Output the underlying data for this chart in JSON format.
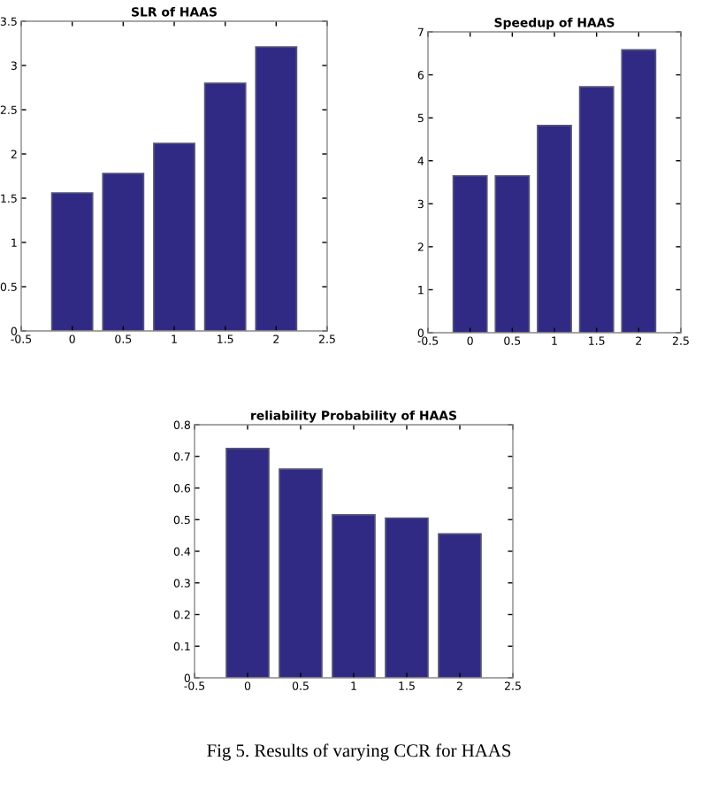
{
  "chart_data": [
    {
      "type": "bar",
      "title": "SLR of HAAS",
      "x": [
        0,
        0.5,
        1,
        1.5,
        2
      ],
      "color": "#312a84",
      "values": [
        1.56,
        1.78,
        2.12,
        2.8,
        3.21
      ],
      "xlim": [
        -0.5,
        2.5
      ],
      "xticks": [
        -0.5,
        0,
        0.5,
        1,
        1.5,
        2,
        2.5
      ],
      "ylim": [
        0,
        3.5
      ],
      "yticks": [
        0,
        0.5,
        1,
        1.5,
        2,
        2.5,
        3,
        3.5
      ],
      "grid": false,
      "legend": false
    },
    {
      "type": "bar",
      "title": "Speedup of HAAS",
      "x": [
        0,
        0.5,
        1,
        1.5,
        2
      ],
      "color": "#312a84",
      "values": [
        3.65,
        3.65,
        4.82,
        5.72,
        6.58
      ],
      "xlim": [
        -0.5,
        2.5
      ],
      "xticks": [
        -0.5,
        0,
        0.5,
        1,
        1.5,
        2,
        2.5
      ],
      "ylim": [
        0,
        7
      ],
      "yticks": [
        0,
        1,
        2,
        3,
        4,
        5,
        6,
        7
      ],
      "grid": false,
      "legend": false
    },
    {
      "type": "bar",
      "title": "reliability Probability of HAAS",
      "x": [
        0,
        0.5,
        1,
        1.5,
        2
      ],
      "color": "#312a84",
      "values": [
        0.725,
        0.66,
        0.515,
        0.505,
        0.455
      ],
      "xlim": [
        -0.5,
        2.5
      ],
      "xticks": [
        -0.5,
        0,
        0.5,
        1,
        1.5,
        2,
        2.5
      ],
      "ylim": [
        0,
        0.8
      ],
      "yticks": [
        0,
        0.1,
        0.2,
        0.3,
        0.4,
        0.5,
        0.6,
        0.7,
        0.8
      ],
      "grid": false,
      "legend": false,
      "annotations": [
        "Fig 5. Results of varying CCR for HAAS"
      ]
    }
  ]
}
